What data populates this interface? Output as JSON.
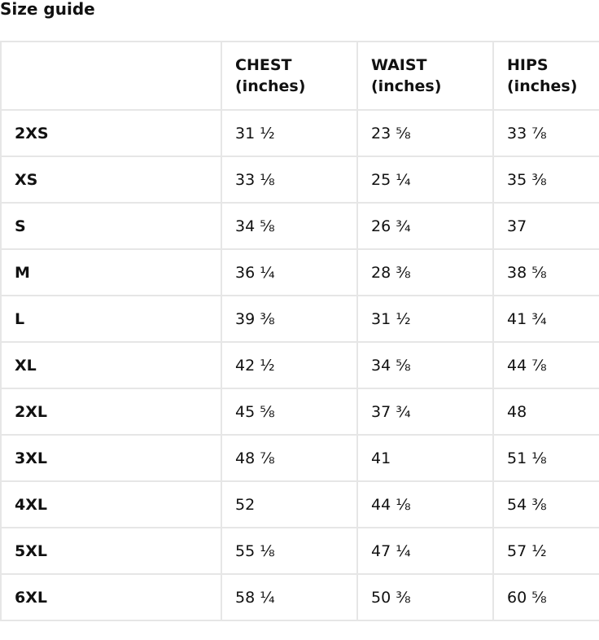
{
  "title": "Size guide",
  "table": {
    "headers": [
      {
        "label": "",
        "unit": ""
      },
      {
        "label": "CHEST",
        "unit": "(inches)"
      },
      {
        "label": "WAIST",
        "unit": "(inches)"
      },
      {
        "label": "HIPS",
        "unit": "(inches)"
      }
    ],
    "rows": [
      {
        "size": "2XS",
        "chest": "31 ½",
        "waist": "23 ⅝",
        "hips": "33 ⅞"
      },
      {
        "size": "XS",
        "chest": "33 ⅛",
        "waist": "25 ¼",
        "hips": "35 ⅜"
      },
      {
        "size": "S",
        "chest": "34 ⅝",
        "waist": "26 ¾",
        "hips": "37"
      },
      {
        "size": "M",
        "chest": "36 ¼",
        "waist": "28 ⅜",
        "hips": "38 ⅝"
      },
      {
        "size": "L",
        "chest": "39 ⅜",
        "waist": "31 ½",
        "hips": "41 ¾"
      },
      {
        "size": "XL",
        "chest": "42 ½",
        "waist": "34 ⅝",
        "hips": "44 ⅞"
      },
      {
        "size": "2XL",
        "chest": "45 ⅝",
        "waist": "37 ¾",
        "hips": "48"
      },
      {
        "size": "3XL",
        "chest": "48 ⅞",
        "waist": "41",
        "hips": "51 ⅛"
      },
      {
        "size": "4XL",
        "chest": "52",
        "waist": "44 ⅛",
        "hips": "54 ⅜"
      },
      {
        "size": "5XL",
        "chest": "55 ⅛",
        "waist": "47 ¼",
        "hips": "57 ½"
      },
      {
        "size": "6XL",
        "chest": "58 ¼",
        "waist": "50 ⅜",
        "hips": "60 ⅝"
      }
    ]
  }
}
